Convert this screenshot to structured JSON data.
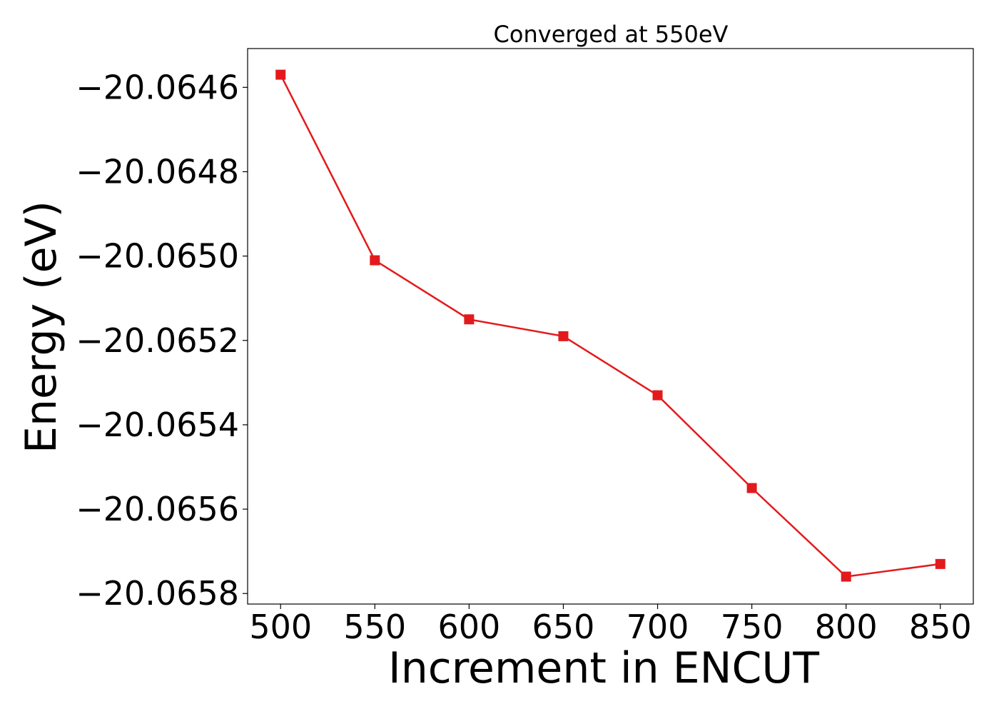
{
  "chart_data": {
    "type": "line",
    "title": "Converged at 550eV",
    "xlabel": "Increment in ENCUT",
    "ylabel": "Energy (eV)",
    "x": [
      500,
      550,
      600,
      650,
      700,
      750,
      800,
      850
    ],
    "series": [
      {
        "values": [
          -20.06457,
          -20.06501,
          -20.06515,
          -20.06519,
          -20.06533,
          -20.06555,
          -20.06576,
          -20.06573
        ],
        "color": "#e31a1c",
        "marker": "square"
      }
    ],
    "xticks": [
      500,
      550,
      600,
      650,
      700,
      750,
      800,
      850
    ],
    "xtick_labels": [
      "500",
      "550",
      "600",
      "650",
      "700",
      "750",
      "800",
      "850"
    ],
    "yticks": [
      -20.0646,
      -20.0648,
      -20.065,
      -20.0652,
      -20.0654,
      -20.0656,
      -20.0658
    ],
    "ytick_labels": [
      "−20.0646",
      "−20.0648",
      "−20.0650",
      "−20.0652",
      "−20.0654",
      "−20.0656",
      "−20.0658"
    ],
    "xlim": [
      482.5,
      867.5
    ],
    "ylim": [
      -20.065825,
      -20.064508
    ],
    "grid": false,
    "legend": "none"
  }
}
